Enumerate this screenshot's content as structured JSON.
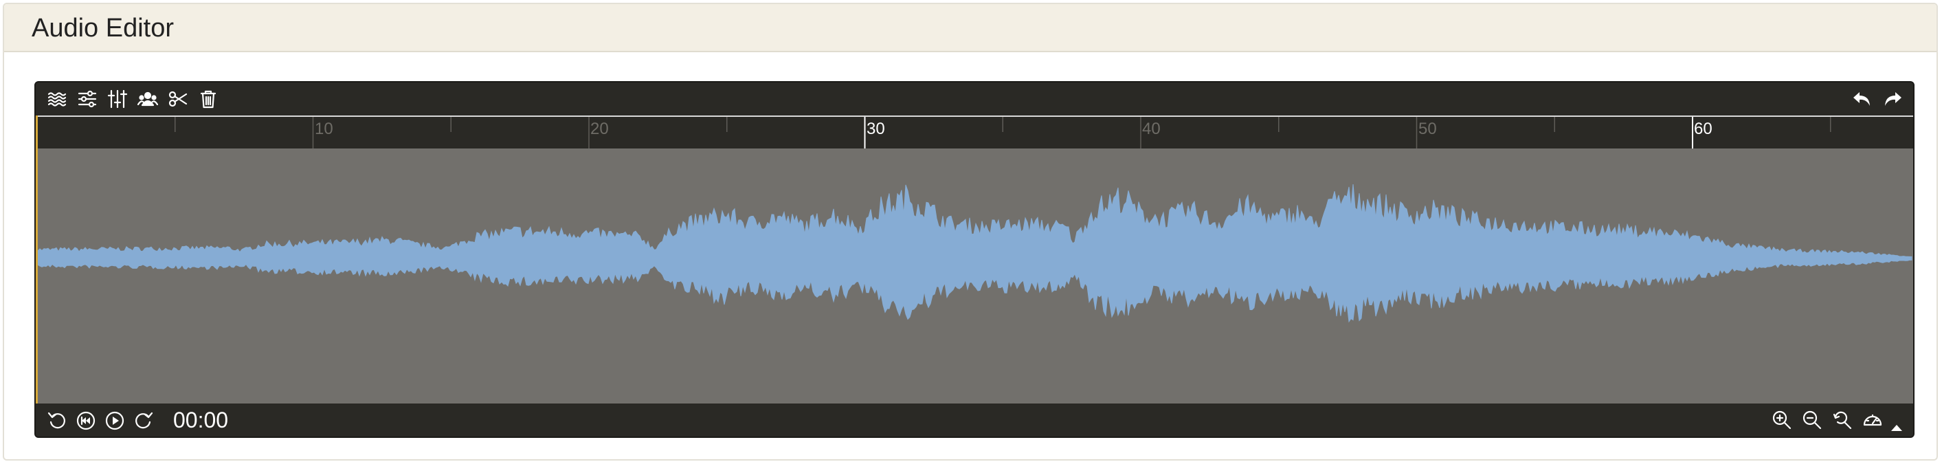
{
  "panel": {
    "title": "Audio Editor"
  },
  "toolbar_top": {
    "left_tools": [
      {
        "icon": "waveform-layers-icon"
      },
      {
        "icon": "sliders-horizontal-icon"
      },
      {
        "icon": "sliders-vertical-icon"
      },
      {
        "icon": "users-icon"
      },
      {
        "icon": "scissors-icon"
      },
      {
        "icon": "trash-icon"
      }
    ],
    "right_tools": [
      {
        "icon": "undo-icon"
      },
      {
        "icon": "redo-icon"
      }
    ]
  },
  "ruler": {
    "labels": [
      {
        "text": "10",
        "major": false
      },
      {
        "text": "20",
        "major": false
      },
      {
        "text": "30",
        "major": true
      },
      {
        "text": "40",
        "major": false
      },
      {
        "text": "50",
        "major": false
      },
      {
        "text": "60",
        "major": true
      }
    ]
  },
  "transport": {
    "buttons": [
      {
        "icon": "rewind-icon"
      },
      {
        "icon": "skip-back-icon"
      },
      {
        "icon": "play-icon"
      },
      {
        "icon": "forward-icon"
      }
    ],
    "time": "00:00"
  },
  "zoom_tools": [
    {
      "icon": "zoom-in-icon"
    },
    {
      "icon": "zoom-out-icon"
    },
    {
      "icon": "zoom-reset-icon"
    },
    {
      "icon": "speed-gauge-icon"
    }
  ],
  "colors": {
    "waveform": "#86acd4",
    "waveform_bg": "#72706c",
    "toolbar_bg": "#2a2925",
    "cursor": "#d6a93a"
  }
}
